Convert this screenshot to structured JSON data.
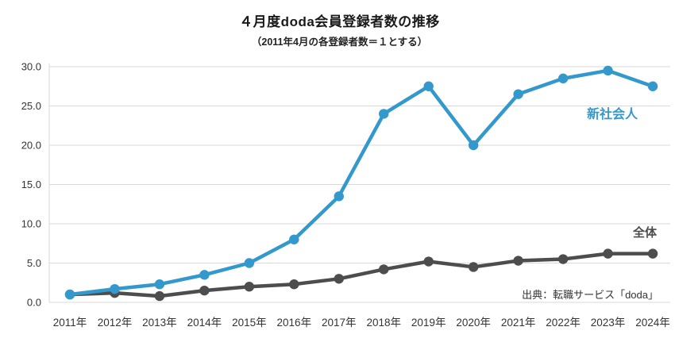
{
  "chart_data": {
    "type": "line",
    "title": "４月度doda会員登録者数の推移",
    "subtitle": "（2011年4月の各登録者数＝１とする）",
    "categories": [
      "2011年",
      "2012年",
      "2013年",
      "2014年",
      "2015年",
      "2016年",
      "2017年",
      "2018年",
      "2019年",
      "2020年",
      "2021年",
      "2022年",
      "2023年",
      "2024年"
    ],
    "series": [
      {
        "name": "新社会人",
        "color": "#3399CC",
        "values": [
          1.0,
          1.7,
          2.3,
          3.5,
          5.0,
          8.0,
          13.5,
          24.0,
          27.5,
          20.0,
          26.5,
          28.5,
          29.5,
          27.5
        ]
      },
      {
        "name": "全体",
        "color": "#4D4D4D",
        "values": [
          1.0,
          1.2,
          0.8,
          1.5,
          2.0,
          2.3,
          3.0,
          4.2,
          5.2,
          4.5,
          5.3,
          5.5,
          6.2,
          6.2
        ]
      }
    ],
    "ylim": [
      0,
      30
    ],
    "ytick_step": 5,
    "ytick_labels": [
      "0.0",
      "5.0",
      "10.0",
      "15.0",
      "20.0",
      "25.0",
      "30.0"
    ],
    "grid": true,
    "legend_position": "inline-right",
    "source": "出典：転職サービス「doda」"
  }
}
